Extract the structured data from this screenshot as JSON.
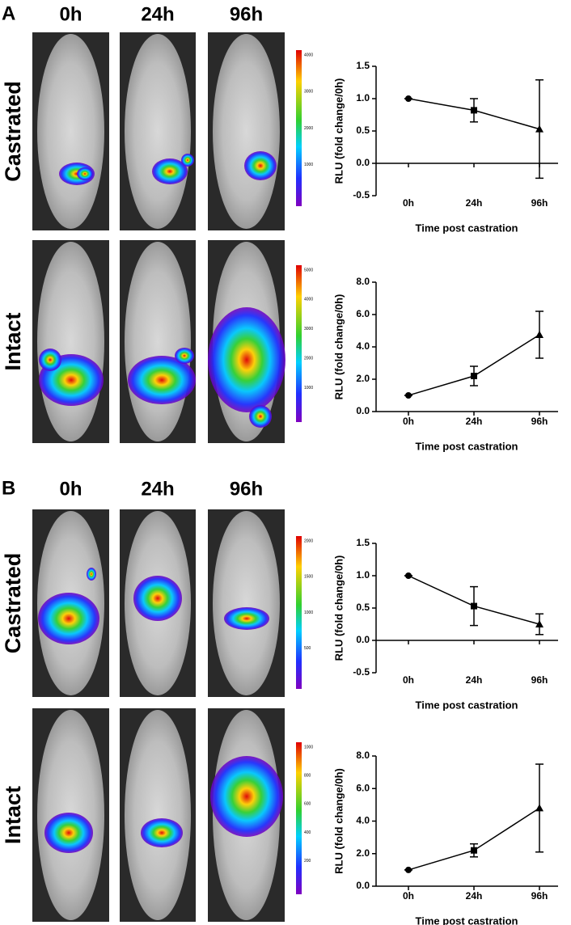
{
  "panels": [
    {
      "label": "A",
      "columns": [
        "0h",
        "24h",
        "96h"
      ],
      "rows": [
        {
          "label": "Castrated",
          "colorbar_ticks": [
            4000,
            3000,
            2000,
            1000
          ]
        },
        {
          "label": "Intact",
          "colorbar_ticks": [
            5000,
            4000,
            3000,
            2000,
            1000
          ]
        }
      ]
    },
    {
      "label": "B",
      "columns": [
        "0h",
        "24h",
        "96h"
      ],
      "rows": [
        {
          "label": "Castrated",
          "colorbar_ticks": [
            2000,
            1500,
            1000,
            500
          ]
        },
        {
          "label": "Intact",
          "colorbar_ticks": [
            1000,
            800,
            600,
            400,
            200
          ]
        }
      ]
    }
  ],
  "chart_data": [
    {
      "type": "line",
      "categories": [
        "0h",
        "24h",
        "96h"
      ],
      "values": [
        1.0,
        0.82,
        0.53
      ],
      "errors": [
        0,
        0.18,
        0.76
      ],
      "markers": [
        "circle",
        "square",
        "triangle"
      ],
      "color": "#000000",
      "xlabel": "Time post castration",
      "ylabel": "RLU (fold change/0h)",
      "ylim": [
        -0.5,
        1.5
      ],
      "yticks": [
        -0.5,
        {
          "value": 0,
          "label": "0.0"
        },
        0.5,
        {
          "value": 1,
          "label": "1.0"
        },
        1.5
      ]
    },
    {
      "type": "line",
      "categories": [
        "0h",
        "24h",
        "96h"
      ],
      "values": [
        1.0,
        2.2,
        4.75
      ],
      "errors": [
        0,
        0.6,
        1.45
      ],
      "markers": [
        "circle",
        "square",
        "triangle"
      ],
      "color": "#000000",
      "xlabel": "Time post castration",
      "ylabel": "RLU (fold change/0h)",
      "ylim": [
        0,
        8
      ],
      "yticks": [
        {
          "value": 0,
          "label": "0.0"
        },
        {
          "value": 2,
          "label": "2.0"
        },
        {
          "value": 4,
          "label": "4.0"
        },
        {
          "value": 6,
          "label": "6.0"
        },
        {
          "value": 8,
          "label": "8.0"
        }
      ]
    },
    {
      "type": "line",
      "categories": [
        "0h",
        "24h",
        "96h"
      ],
      "values": [
        1.0,
        0.53,
        0.25
      ],
      "errors": [
        0,
        0.3,
        0.16
      ],
      "markers": [
        "circle",
        "square",
        "triangle"
      ],
      "color": "#000000",
      "xlabel": "Time post castration",
      "ylabel": "RLU (fold change/0h)",
      "ylim": [
        -0.5,
        1.5
      ],
      "yticks": [
        -0.5,
        {
          "value": 0,
          "label": "0.0"
        },
        0.5,
        {
          "value": 1,
          "label": "1.0"
        },
        1.5
      ]
    },
    {
      "type": "line",
      "categories": [
        "0h",
        "24h",
        "96h"
      ],
      "values": [
        1.0,
        2.2,
        4.8
      ],
      "errors": [
        0,
        0.4,
        2.7
      ],
      "markers": [
        "circle",
        "square",
        "triangle"
      ],
      "color": "#000000",
      "xlabel": "Time post castration",
      "ylabel": "RLU (fold change/0h)",
      "ylim": [
        0,
        8
      ],
      "yticks": [
        {
          "value": 0,
          "label": "0.0"
        },
        {
          "value": 2,
          "label": "2.0"
        },
        {
          "value": 4,
          "label": "4.0"
        },
        {
          "value": 6,
          "label": "6.0"
        },
        {
          "value": 8,
          "label": "8.0"
        }
      ]
    }
  ]
}
